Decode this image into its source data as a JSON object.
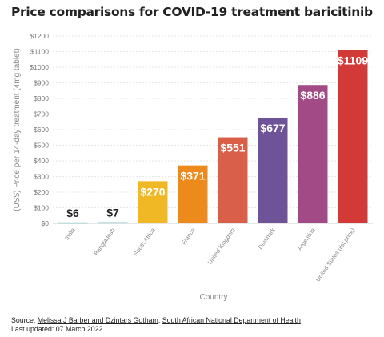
{
  "title": "Price comparisons for COVID-19 treatment baricitinib",
  "chart_data": {
    "type": "bar",
    "categories": [
      "India",
      "Bangladesh",
      "South Africa",
      "France",
      "United Kingdom",
      "Denmark",
      "Argentina",
      "United States (list price)"
    ],
    "values": [
      6,
      7,
      270,
      371,
      551,
      677,
      886,
      1109
    ],
    "value_labels": [
      "$6",
      "$7",
      "$270",
      "$371",
      "$551",
      "$677",
      "$886",
      "$1109"
    ],
    "colors": [
      "#5bb4b4",
      "#5bb4b4",
      "#f0b825",
      "#ec8a1c",
      "#d95f48",
      "#6e5399",
      "#a24a86",
      "#d13a37"
    ],
    "value_label_colors": [
      "#222222",
      "#222222",
      "#ffffff",
      "#ffffff",
      "#ffffff",
      "#ffffff",
      "#ffffff",
      "#ffffff"
    ],
    "ylabel": "(US$) Price per 14-day treatment (4mg tablet)",
    "xlabel": "Country",
    "ylim": [
      0,
      1200
    ],
    "yticks": [
      0,
      100,
      200,
      300,
      400,
      500,
      600,
      700,
      800,
      900,
      1000,
      1100,
      1200
    ],
    "ytick_labels": [
      "$0",
      "$100",
      "$200",
      "$300",
      "$400",
      "$500",
      "$600",
      "$700",
      "$800",
      "$900",
      "$1000",
      "$1100",
      "$1200"
    ],
    "grid": true,
    "legend": "none"
  },
  "footer": {
    "source_prefix": "Source: ",
    "source_link_1": "Melissa J Barber and Dzintars Gotham",
    "source_sep": ", ",
    "source_link_2": "South African National Department of Health",
    "updated": "Last updated: 07 March 2022"
  }
}
